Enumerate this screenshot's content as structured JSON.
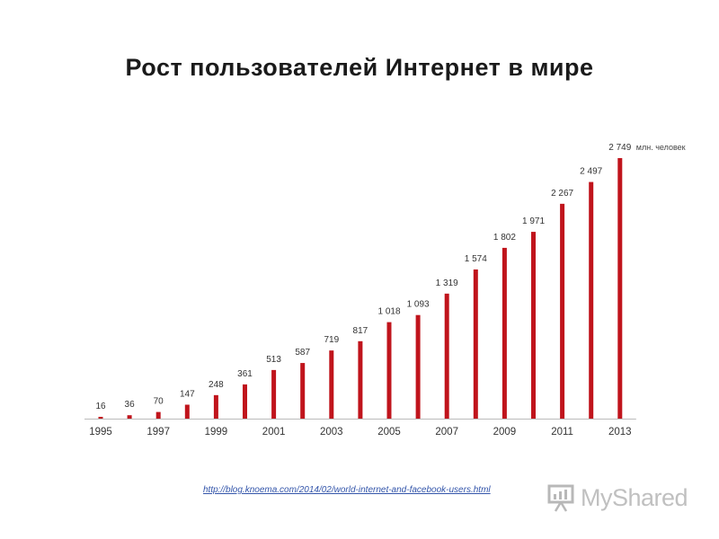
{
  "chart_data": {
    "type": "bar",
    "title": "Рост пользователей Интернет в мире",
    "unit_label": "млн. человек",
    "categories": [
      "1995",
      "1996",
      "1997",
      "1998",
      "1999",
      "2000",
      "2001",
      "2002",
      "2003",
      "2004",
      "2005",
      "2006",
      "2007",
      "2008",
      "2009",
      "2010",
      "2011",
      "2012",
      "2013"
    ],
    "values": [
      16,
      36,
      70,
      147,
      248,
      361,
      513,
      587,
      719,
      817,
      1018,
      1093,
      1319,
      1574,
      1802,
      1971,
      2267,
      2497,
      2749
    ],
    "value_labels": [
      "16",
      "36",
      "70",
      "147",
      "248",
      "361",
      "513",
      "587",
      "719",
      "817",
      "1 018",
      "1 093",
      "1 319",
      "1 574",
      "1 802",
      "1 971",
      "2 267",
      "2 497",
      "2 749"
    ],
    "x_tick_labels": [
      "1995",
      "1997",
      "1999",
      "2001",
      "2003",
      "2005",
      "2007",
      "2009",
      "2011",
      "2013"
    ],
    "ylim": [
      0,
      2749
    ],
    "grid": false,
    "colors": {
      "bar": "#c0141c"
    }
  },
  "footer": {
    "source_url": "http://blog.knoema.com/2014/02/world-internet-and-facebook-users.html",
    "logo_text": "MyShared"
  }
}
